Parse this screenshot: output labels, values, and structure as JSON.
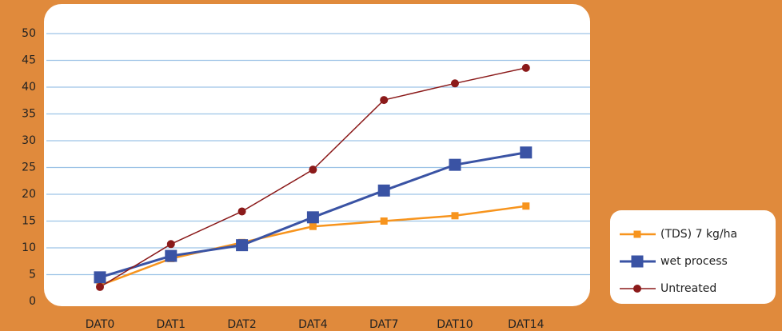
{
  "chart_data": {
    "type": "line",
    "categories": [
      "DAT0",
      "DAT1",
      "DAT2",
      "DAT4",
      "DAT7",
      "DAT10",
      "DAT14"
    ],
    "series": [
      {
        "name": "(TDS) 7 kg/ha",
        "color": "#f7941d",
        "values": [
          3,
          8,
          11,
          14,
          15,
          16,
          17.8
        ]
      },
      {
        "name": "wet process",
        "color": "#3a53a4",
        "values": [
          4.5,
          8.5,
          10.5,
          15.7,
          20.7,
          25.5,
          27.8
        ]
      },
      {
        "name": "Untreated",
        "color": "#8b1a1a",
        "values": [
          2.7,
          10.7,
          16.8,
          24.6,
          37.6,
          40.7,
          43.6
        ]
      }
    ],
    "ylim": [
      0,
      50
    ],
    "yticks": [
      0,
      5,
      10,
      15,
      20,
      25,
      30,
      35,
      40,
      45,
      50
    ],
    "grid": true,
    "legend": "right"
  }
}
